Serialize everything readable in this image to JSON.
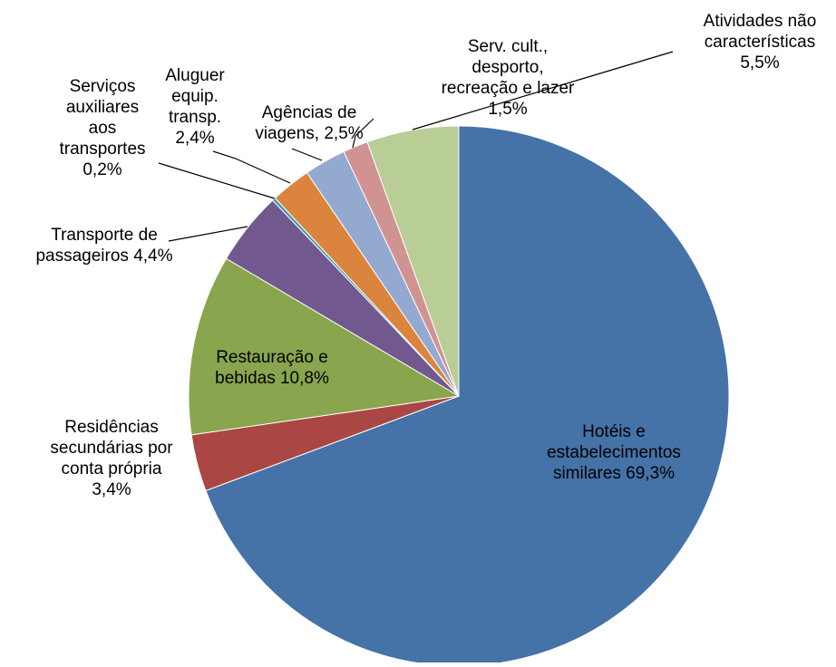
{
  "chart_data": {
    "type": "pie",
    "start_angle_deg": 0,
    "direction": "clockwise",
    "slices": [
      {
        "label_lines": [
          "Hotéis e",
          "estabelecimentos",
          "similares  69,3%"
        ],
        "value": 69.3,
        "color": "#4572A7"
      },
      {
        "label_lines": [
          "Residências",
          "secundárias por",
          "conta própria",
          "3,4%"
        ],
        "value": 3.4,
        "color": "#AA4643"
      },
      {
        "label_lines": [
          "Restauração e",
          "bebidas  10,8%"
        ],
        "value": 10.8,
        "color": "#89A54E"
      },
      {
        "label_lines": [
          "Transporte de",
          "passageiros 4,4%"
        ],
        "value": 4.4,
        "color": "#71588F"
      },
      {
        "label_lines": [
          "Serviços",
          "auxiliares",
          "aos",
          "transportes",
          "0,2%"
        ],
        "value": 0.2,
        "color": "#4198AF"
      },
      {
        "label_lines": [
          "Aluguer",
          "equip.",
          "transp.",
          "2,4%"
        ],
        "value": 2.4,
        "color": "#DB843D"
      },
      {
        "label_lines": [
          "Agências de",
          "viagens, 2,5%"
        ],
        "value": 2.5,
        "color": "#93A9CF"
      },
      {
        "label_lines": [
          "Serv. cult.,",
          "desporto,",
          "recreação e lazer",
          "1,5%"
        ],
        "value": 1.5,
        "color": "#D19392"
      },
      {
        "label_lines": [
          "Atividades não",
          "características",
          "5,5%"
        ],
        "value": 5.5,
        "color": "#B9CD96"
      }
    ]
  }
}
